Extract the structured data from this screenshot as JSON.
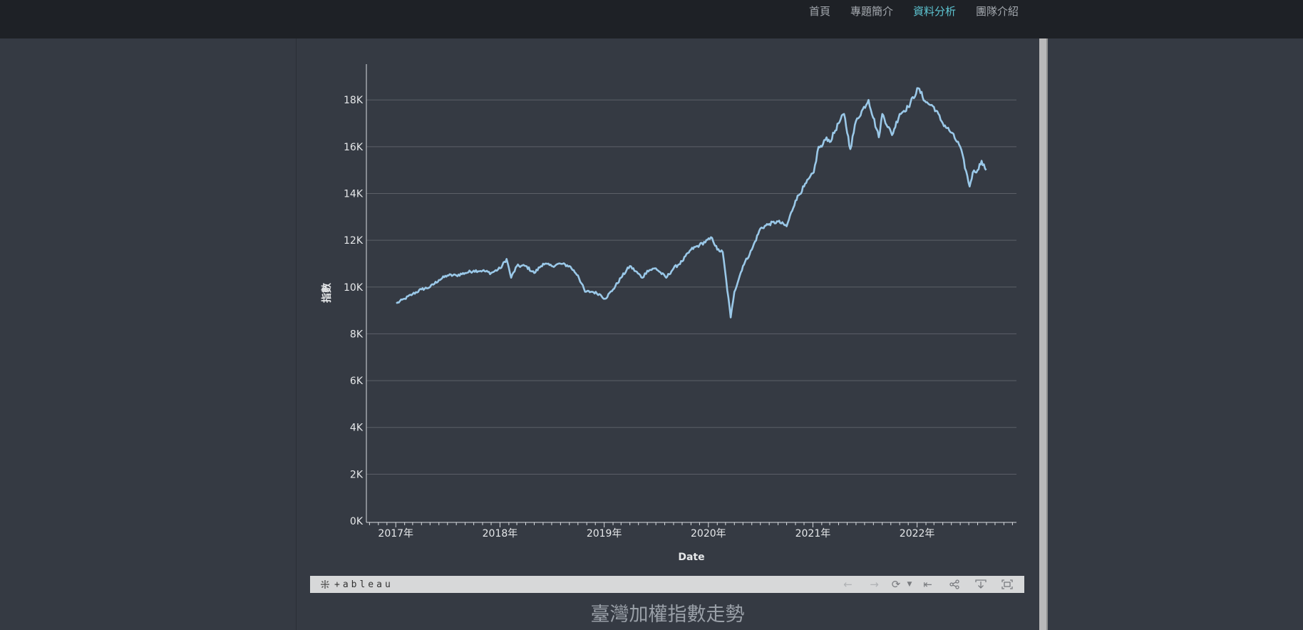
{
  "nav": {
    "items": [
      {
        "label": "首頁",
        "active": false
      },
      {
        "label": "專題簡介",
        "active": false
      },
      {
        "label": "資料分析",
        "active": true
      },
      {
        "label": "團隊介紹",
        "active": false
      }
    ]
  },
  "tableau_bar": {
    "logo_text": "+ableau",
    "icons": [
      "undo-icon",
      "redo-icon",
      "revert-icon",
      "dropdown-icon",
      "back-to-start-icon",
      "share-icon",
      "download-icon",
      "fullscreen-icon"
    ]
  },
  "caption": "臺灣加權指數走勢",
  "colors": {
    "line": "#9ac8e8",
    "background": "#353a43",
    "grid": "#5c6068",
    "axis": "#d9dce0",
    "topbar": "#1e2126",
    "nav_active": "#5ec6d3"
  },
  "chart_data": {
    "type": "line",
    "title": "",
    "xlabel": "Date",
    "ylabel": "指數",
    "x_tick_labels": [
      "2017年",
      "2018年",
      "2019年",
      "2020年",
      "2021年",
      "2022年"
    ],
    "y_tick_labels": [
      "0K",
      "2K",
      "4K",
      "6K",
      "8K",
      "10K",
      "12K",
      "14K",
      "16K",
      "18K"
    ],
    "ylim": [
      0,
      19500
    ],
    "xlim": [
      "2016-09-20",
      "2022-12-15"
    ],
    "grid": true,
    "series": [
      {
        "name": "",
        "x": [
          "2017-01-03",
          "2017-02-01",
          "2017-03-01",
          "2017-04-01",
          "2017-05-01",
          "2017-06-01",
          "2017-07-01",
          "2017-08-01",
          "2017-09-01",
          "2017-10-01",
          "2017-11-01",
          "2017-12-01",
          "2018-01-02",
          "2018-01-24",
          "2018-02-09",
          "2018-03-01",
          "2018-04-01",
          "2018-05-01",
          "2018-06-01",
          "2018-07-01",
          "2018-08-01",
          "2018-09-01",
          "2018-10-01",
          "2018-10-26",
          "2018-11-20",
          "2018-12-15",
          "2019-01-04",
          "2019-02-01",
          "2019-03-01",
          "2019-04-01",
          "2019-05-15",
          "2019-06-01",
          "2019-07-01",
          "2019-08-06",
          "2019-09-01",
          "2019-10-01",
          "2019-11-01",
          "2019-12-01",
          "2020-01-14",
          "2020-02-01",
          "2020-02-20",
          "2020-03-19",
          "2020-04-01",
          "2020-05-01",
          "2020-06-01",
          "2020-07-01",
          "2020-08-01",
          "2020-09-01",
          "2020-10-01",
          "2020-11-01",
          "2020-12-01",
          "2021-01-04",
          "2021-01-21",
          "2021-02-01",
          "2021-02-18",
          "2021-03-01",
          "2021-04-01",
          "2021-04-20",
          "2021-05-12",
          "2021-06-01",
          "2021-07-15",
          "2021-08-20",
          "2021-09-01",
          "2021-10-05",
          "2021-11-01",
          "2021-12-01",
          "2022-01-05",
          "2022-02-01",
          "2022-03-01",
          "2022-04-01",
          "2022-05-01",
          "2022-06-01",
          "2022-07-04",
          "2022-07-15",
          "2022-08-01",
          "2022-08-15",
          "2022-08-31"
        ],
        "values": [
          9300,
          9500,
          9700,
          9900,
          10000,
          10300,
          10500,
          10500,
          10600,
          10700,
          10700,
          10600,
          10800,
          11200,
          10400,
          10900,
          10900,
          10600,
          11000,
          10900,
          11000,
          10900,
          10500,
          9800,
          9800,
          9700,
          9500,
          9900,
          10400,
          10900,
          10400,
          10700,
          10800,
          10400,
          10800,
          11100,
          11600,
          11800,
          12100,
          11600,
          11500,
          8700,
          9800,
          10900,
          11600,
          12500,
          12700,
          12800,
          12600,
          13700,
          14300,
          14900,
          16000,
          16000,
          16400,
          16200,
          17000,
          17400,
          15900,
          17100,
          18000,
          16400,
          17400,
          16500,
          17400,
          17700,
          18500,
          17900,
          17700,
          17000,
          16600,
          16000,
          14300,
          14900,
          15000,
          15400,
          15000
        ]
      }
    ]
  }
}
